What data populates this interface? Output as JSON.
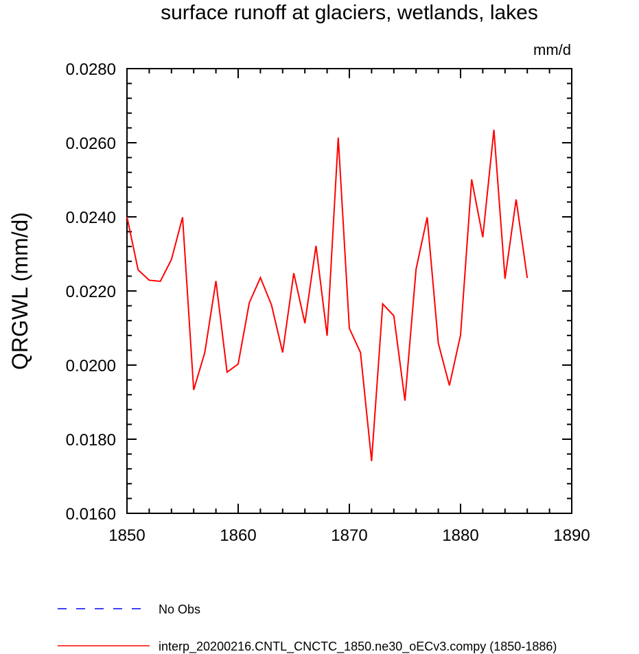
{
  "chart_data": {
    "type": "line",
    "title": "surface runoff at glaciers, wetlands, lakes",
    "units_label": "mm/d",
    "ylabel": "QRGWL  (mm/d)",
    "xlabel": "",
    "xlim": [
      1850,
      1890
    ],
    "ylim": [
      0.016,
      0.028
    ],
    "x_ticks": [
      1850,
      1860,
      1870,
      1880,
      1890
    ],
    "x_tick_labels": [
      "1850",
      "1860",
      "1870",
      "1880",
      "1890"
    ],
    "y_ticks": [
      0.016,
      0.018,
      0.02,
      0.022,
      0.024,
      0.026,
      0.028
    ],
    "y_tick_labels": [
      "0.0160",
      "0.0180",
      "0.0200",
      "0.0220",
      "0.0240",
      "0.0260",
      "0.0280"
    ],
    "grid": false,
    "legend_position": "bottom",
    "series": [
      {
        "name": "No Obs",
        "color": "#0000ff",
        "style": "dashed",
        "x": [],
        "values": []
      },
      {
        "name": "interp_20200216.CNTL_CNCTC_1850.ne30_oECv3.compy (1850-1886)",
        "color": "#ff0000",
        "style": "solid",
        "x": [
          1850,
          1851,
          1852,
          1853,
          1854,
          1855,
          1856,
          1857,
          1858,
          1859,
          1860,
          1861,
          1862,
          1863,
          1864,
          1865,
          1866,
          1867,
          1868,
          1869,
          1870,
          1871,
          1872,
          1873,
          1874,
          1875,
          1876,
          1877,
          1878,
          1879,
          1880,
          1881,
          1882,
          1883,
          1884,
          1885,
          1886
        ],
        "values": [
          0.024,
          0.02257,
          0.02229,
          0.02226,
          0.02285,
          0.02399,
          0.01933,
          0.02034,
          0.02227,
          0.01981,
          0.02003,
          0.02168,
          0.02236,
          0.02162,
          0.02034,
          0.02248,
          0.02113,
          0.02322,
          0.02079,
          0.02614,
          0.02099,
          0.02034,
          0.01741,
          0.02165,
          0.02133,
          0.01904,
          0.02259,
          0.02399,
          0.02059,
          0.01945,
          0.02081,
          0.02501,
          0.02345,
          0.02635,
          0.02233,
          0.02447,
          0.02235
        ]
      }
    ]
  }
}
